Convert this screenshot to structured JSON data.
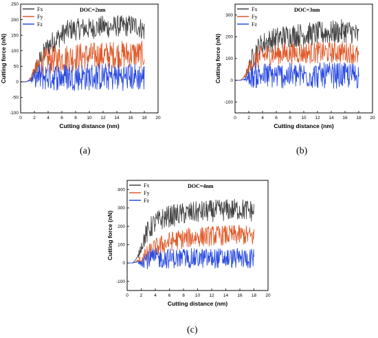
{
  "figure": {
    "panel_labels": [
      "(a)",
      "(b)",
      "(c)"
    ]
  },
  "colors": {
    "Fx": "#444444",
    "Fy": "#e05a2a",
    "Fz": "#2a4be0"
  },
  "chart_data": [
    {
      "type": "line",
      "title": "DOC=2nm",
      "xlabel": "Cutting distance (nm)",
      "ylabel": "Cutting force (nN)",
      "xlim": [
        0,
        20
      ],
      "ylim": [
        -100,
        250
      ],
      "xticks": [
        0,
        2,
        4,
        6,
        8,
        10,
        12,
        14,
        16,
        18,
        20
      ],
      "yticks": [
        -100,
        -50,
        0,
        50,
        100,
        150,
        200,
        250
      ],
      "legend": "top-left",
      "x_end": 18,
      "series": [
        {
          "name": "Fx",
          "points": [
            [
              0,
              0
            ],
            [
              0.8,
              0
            ],
            [
              1.5,
              10
            ],
            [
              2,
              35
            ],
            [
              2.5,
              55
            ],
            [
              3,
              75
            ],
            [
              3.5,
              95
            ],
            [
              4,
              115
            ],
            [
              4.5,
              125
            ],
            [
              5,
              135
            ],
            [
              5.5,
              142
            ],
            [
              6,
              150
            ],
            [
              6.5,
              160
            ],
            [
              7,
              165
            ],
            [
              7.5,
              170
            ],
            [
              8,
              168
            ],
            [
              9,
              172
            ],
            [
              10,
              170
            ],
            [
              11,
              175
            ],
            [
              12,
              178
            ],
            [
              13,
              175
            ],
            [
              14,
              180
            ],
            [
              15,
              178
            ],
            [
              16,
              182
            ],
            [
              17,
              180
            ],
            [
              18,
              165
            ]
          ]
        },
        {
          "name": "Fy",
          "points": [
            [
              0,
              0
            ],
            [
              0.8,
              0
            ],
            [
              1.5,
              10
            ],
            [
              2,
              30
            ],
            [
              2.5,
              45
            ],
            [
              3,
              55
            ],
            [
              3.5,
              62
            ],
            [
              4,
              68
            ],
            [
              5,
              72
            ],
            [
              6,
              75
            ],
            [
              7,
              78
            ],
            [
              8,
              80
            ],
            [
              9,
              82
            ],
            [
              10,
              82
            ],
            [
              11,
              84
            ],
            [
              12,
              85
            ],
            [
              13,
              86
            ],
            [
              14,
              88
            ],
            [
              15,
              88
            ],
            [
              16,
              90
            ],
            [
              17,
              88
            ],
            [
              18,
              86
            ]
          ]
        },
        {
          "name": "Fz",
          "points": [
            [
              0,
              0
            ],
            [
              0.8,
              0
            ],
            [
              1.5,
              5
            ],
            [
              2,
              8
            ],
            [
              2.5,
              10
            ],
            [
              3,
              12
            ],
            [
              4,
              12
            ],
            [
              5,
              12
            ],
            [
              6,
              12
            ],
            [
              7,
              12
            ],
            [
              8,
              12
            ],
            [
              9,
              12
            ],
            [
              10,
              12
            ],
            [
              11,
              12
            ],
            [
              12,
              12
            ],
            [
              13,
              12
            ],
            [
              14,
              12
            ],
            [
              15,
              12
            ],
            [
              16,
              12
            ],
            [
              17,
              12
            ],
            [
              18,
              10
            ]
          ]
        }
      ]
    },
    {
      "type": "line",
      "title": "DOC=3nm",
      "xlabel": "Cutting distance (nm)",
      "ylabel": "Cutting force (nN)",
      "xlim": [
        0,
        20
      ],
      "ylim": [
        -150,
        350
      ],
      "xticks": [
        0,
        2,
        4,
        6,
        8,
        10,
        12,
        14,
        16,
        18,
        20
      ],
      "yticks": [
        -100,
        0,
        100,
        200,
        300
      ],
      "legend": "top-left",
      "x_end": 18,
      "series": [
        {
          "name": "Fx",
          "points": [
            [
              0,
              0
            ],
            [
              0.8,
              0
            ],
            [
              1.5,
              20
            ],
            [
              2,
              60
            ],
            [
              2.5,
              100
            ],
            [
              3,
              130
            ],
            [
              3.5,
              150
            ],
            [
              4,
              165
            ],
            [
              5,
              180
            ],
            [
              6,
              190
            ],
            [
              7,
              200
            ],
            [
              8,
              205
            ],
            [
              9,
              208
            ],
            [
              10,
              210
            ],
            [
              11,
              212
            ],
            [
              12,
              215
            ],
            [
              13,
              218
            ],
            [
              14,
              220
            ],
            [
              15,
              222
            ],
            [
              16,
              228
            ],
            [
              17,
              222
            ],
            [
              18,
              200
            ]
          ]
        },
        {
          "name": "Fy",
          "points": [
            [
              0,
              0
            ],
            [
              0.8,
              0
            ],
            [
              1.5,
              20
            ],
            [
              2,
              55
            ],
            [
              2.5,
              80
            ],
            [
              3,
              95
            ],
            [
              3.5,
              105
            ],
            [
              4,
              112
            ],
            [
              5,
              118
            ],
            [
              6,
              120
            ],
            [
              7,
              122
            ],
            [
              8,
              124
            ],
            [
              9,
              125
            ],
            [
              10,
              126
            ],
            [
              11,
              126
            ],
            [
              12,
              128
            ],
            [
              13,
              128
            ],
            [
              14,
              128
            ],
            [
              15,
              130
            ],
            [
              16,
              130
            ],
            [
              17,
              128
            ],
            [
              18,
              110
            ]
          ]
        },
        {
          "name": "Fz",
          "points": [
            [
              0,
              0
            ],
            [
              0.8,
              0
            ],
            [
              1.5,
              5
            ],
            [
              2,
              10
            ],
            [
              2.5,
              14
            ],
            [
              3,
              16
            ],
            [
              4,
              16
            ],
            [
              5,
              16
            ],
            [
              6,
              16
            ],
            [
              7,
              16
            ],
            [
              8,
              16
            ],
            [
              9,
              16
            ],
            [
              10,
              16
            ],
            [
              11,
              16
            ],
            [
              12,
              16
            ],
            [
              13,
              16
            ],
            [
              14,
              16
            ],
            [
              15,
              16
            ],
            [
              16,
              16
            ],
            [
              17,
              16
            ],
            [
              18,
              14
            ]
          ]
        }
      ]
    },
    {
      "type": "line",
      "title": "DOC=4nm",
      "xlabel": "Cutting distance (nm)",
      "ylabel": "Cutting force (nN)",
      "xlim": [
        0,
        20
      ],
      "ylim": [
        -150,
        450
      ],
      "xticks": [
        0,
        2,
        4,
        6,
        8,
        10,
        12,
        14,
        16,
        18,
        20
      ],
      "yticks": [
        -100,
        0,
        100,
        200,
        300,
        400
      ],
      "legend": "top-left",
      "x_end": 18,
      "series": [
        {
          "name": "Fx",
          "points": [
            [
              0,
              0
            ],
            [
              0.8,
              0
            ],
            [
              1.5,
              30
            ],
            [
              2,
              90
            ],
            [
              2.5,
              140
            ],
            [
              3,
              175
            ],
            [
              3.5,
              200
            ],
            [
              4,
              220
            ],
            [
              5,
              240
            ],
            [
              6,
              255
            ],
            [
              7,
              262
            ],
            [
              8,
              268
            ],
            [
              9,
              272
            ],
            [
              10,
              276
            ],
            [
              11,
              280
            ],
            [
              12,
              283
            ],
            [
              13,
              285
            ],
            [
              14,
              288
            ],
            [
              15,
              290
            ],
            [
              16,
              292
            ],
            [
              17,
              290
            ],
            [
              18,
              280
            ]
          ]
        },
        {
          "name": "Fy",
          "points": [
            [
              0,
              0
            ],
            [
              0.8,
              0
            ],
            [
              1.5,
              10
            ],
            [
              2,
              20
            ],
            [
              2.5,
              30
            ],
            [
              3,
              45
            ],
            [
              3.5,
              65
            ],
            [
              4,
              80
            ],
            [
              5,
              100
            ],
            [
              6,
              115
            ],
            [
              7,
              125
            ],
            [
              8,
              132
            ],
            [
              9,
              138
            ],
            [
              10,
              142
            ],
            [
              11,
              145
            ],
            [
              12,
              148
            ],
            [
              13,
              150
            ],
            [
              14,
              150
            ],
            [
              15,
              152
            ],
            [
              16,
              152
            ],
            [
              17,
              150
            ],
            [
              18,
              140
            ]
          ]
        },
        {
          "name": "Fz",
          "points": [
            [
              0,
              0
            ],
            [
              0.8,
              0
            ],
            [
              1.5,
              5
            ],
            [
              2,
              10
            ],
            [
              2.5,
              14
            ],
            [
              3,
              18
            ],
            [
              4,
              20
            ],
            [
              5,
              20
            ],
            [
              6,
              20
            ],
            [
              7,
              20
            ],
            [
              8,
              20
            ],
            [
              9,
              20
            ],
            [
              10,
              20
            ],
            [
              11,
              20
            ],
            [
              12,
              20
            ],
            [
              13,
              20
            ],
            [
              14,
              20
            ],
            [
              15,
              20
            ],
            [
              16,
              20
            ],
            [
              17,
              20
            ],
            [
              18,
              18
            ]
          ]
        }
      ]
    }
  ]
}
